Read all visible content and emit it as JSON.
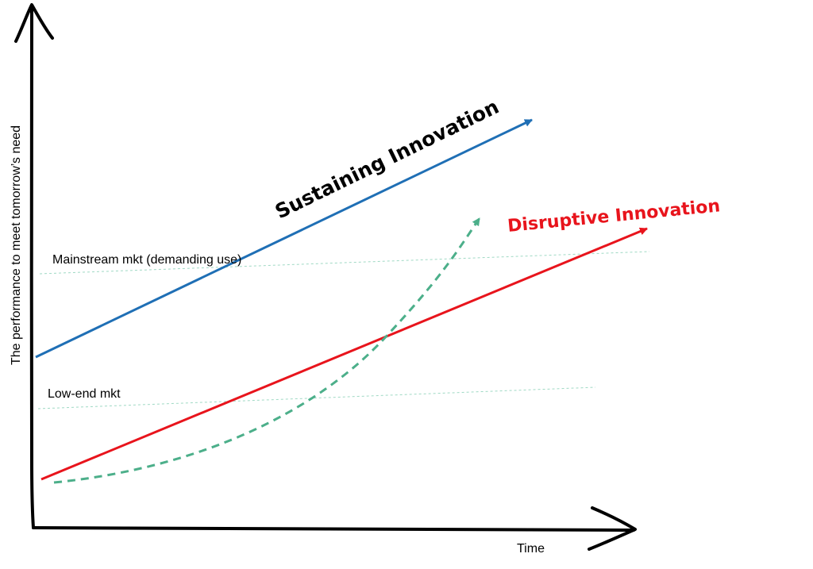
{
  "axes": {
    "y_label": "The performance to meet tomorrow’s need",
    "x_label": "Time"
  },
  "levels": {
    "mainstream": "Mainstream mkt (demanding use)",
    "low_end": "Low-end mkt"
  },
  "curves": {
    "sustaining": {
      "label": "Sustaining Innovation",
      "color": "#1f6fb5"
    },
    "disruptive": {
      "label": "Disruptive Innovation",
      "color": "#e8141c"
    },
    "new_market": {
      "color": "#4caf8a"
    }
  },
  "colors": {
    "axis": "#000000",
    "market_line": "#9fd9c4"
  }
}
